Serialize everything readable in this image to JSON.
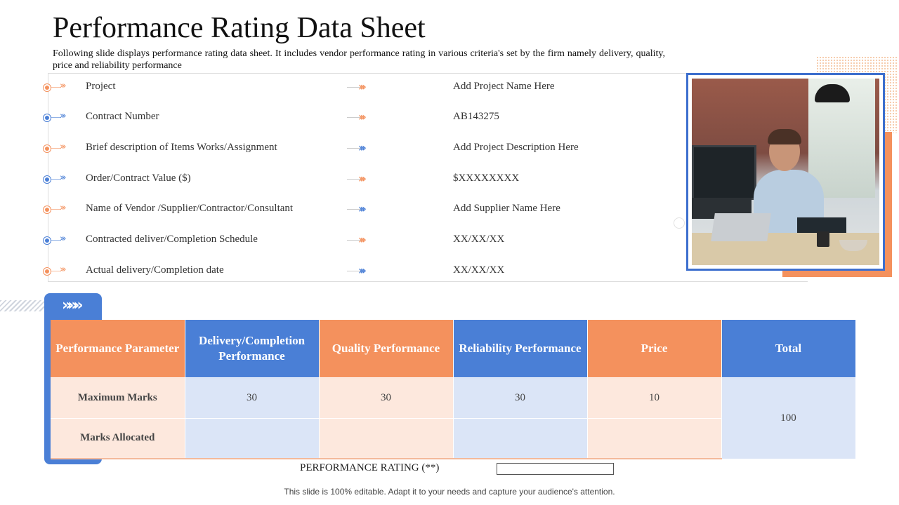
{
  "title": "Performance Rating Data Sheet",
  "subtitle": "Following slide displays performance rating data sheet. It includes vendor performance rating in various criteria's set by the firm namely delivery, quality, price and reliability performance",
  "info_rows": [
    {
      "label": "Project",
      "value": "Add Project Name Here",
      "color": "#f4915d",
      "arrow_color": "#f4915d"
    },
    {
      "label": "Contract Number",
      "value": "AB143275",
      "color": "#4a7fd6",
      "arrow_color": "#f4915d"
    },
    {
      "label": "Brief description of Items Works/Assignment",
      "value": "Add Project Description Here",
      "color": "#f4915d",
      "arrow_color": "#4a7fd6"
    },
    {
      "label": "Order/Contract Value ($)",
      "value": "$XXXXXXXX",
      "color": "#4a7fd6",
      "arrow_color": "#f4915d"
    },
    {
      "label": "Name of Vendor /Supplier/Contractor/Consultant",
      "value": "Add Supplier Name Here",
      "color": "#f4915d",
      "arrow_color": "#4a7fd6"
    },
    {
      "label": "Contracted deliver/Completion Schedule",
      "value": "XX/XX/XX",
      "color": "#4a7fd6",
      "arrow_color": "#f4915d"
    },
    {
      "label": "Actual delivery/Completion date",
      "value": "XX/XX/XX",
      "color": "#f4915d",
      "arrow_color": "#4a7fd6"
    }
  ],
  "table": {
    "headers": [
      "Performance Parameter",
      "Delivery/Completion Performance",
      "Quality Performance",
      "Reliability Performance",
      "Price",
      "Total"
    ],
    "rows": [
      {
        "label": "Maximum Marks",
        "values": [
          "30",
          "30",
          "30",
          "10"
        ]
      },
      {
        "label": "Marks Allocated",
        "values": [
          "",
          "",
          "",
          ""
        ]
      }
    ],
    "total": "100"
  },
  "rating_label": "PERFORMANCE RATING (**)",
  "rating_value": "",
  "footer": "This slide is 100% editable. Adapt it to your needs and capture your audience's attention.",
  "colors": {
    "orange": "#f4915d",
    "blue": "#4a7fd6",
    "peach": "#fde8dd",
    "light_blue": "#dbe5f7"
  }
}
